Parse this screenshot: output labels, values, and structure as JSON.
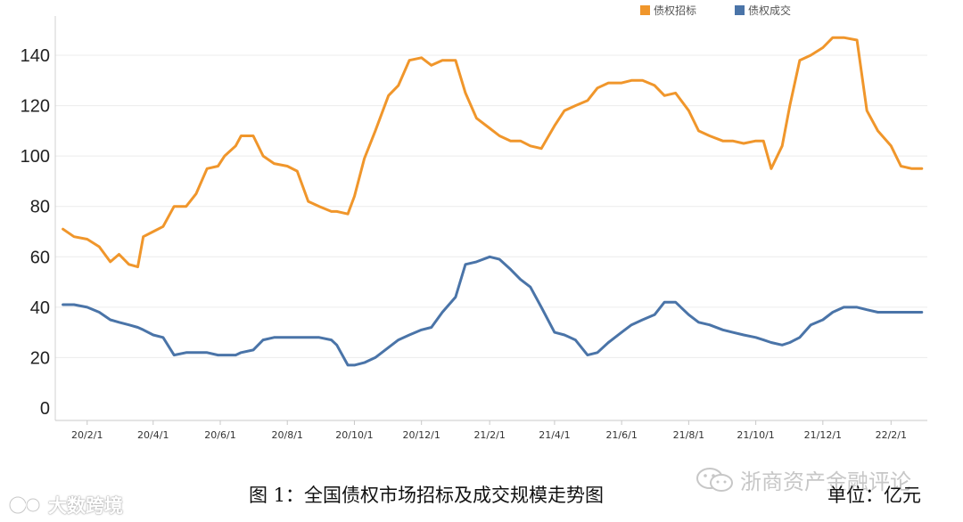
{
  "chart_data": {
    "type": "line",
    "title": "",
    "xlabel": "",
    "ylabel": "",
    "ylim": [
      0,
      150
    ],
    "yticks": [
      0,
      20,
      40,
      60,
      80,
      100,
      120,
      140
    ],
    "grid": true,
    "legend_position": "top-right",
    "x_ticks": [
      "20/2/1",
      "20/4/1",
      "20/6/1",
      "20/8/1",
      "20/10/1",
      "20/12/1",
      "21/2/1",
      "21/4/1",
      "21/6/1",
      "21/8/1",
      "21/10/1",
      "21/12/1",
      "22/2/1"
    ],
    "series": [
      {
        "name": "债权招标",
        "color": "#f0962b",
        "x": [
          "2020-01-10",
          "2020-01-20",
          "2020-02-01",
          "2020-02-12",
          "2020-02-22",
          "2020-03-01",
          "2020-03-10",
          "2020-03-18",
          "2020-03-23",
          "2020-04-01",
          "2020-04-10",
          "2020-04-20",
          "2020-05-01",
          "2020-05-10",
          "2020-05-20",
          "2020-05-30",
          "2020-06-05",
          "2020-06-15",
          "2020-06-20",
          "2020-07-01",
          "2020-07-10",
          "2020-07-20",
          "2020-08-01",
          "2020-08-10",
          "2020-08-20",
          "2020-08-30",
          "2020-09-10",
          "2020-09-15",
          "2020-09-25",
          "2020-10-01",
          "2020-10-10",
          "2020-10-20",
          "2020-11-01",
          "2020-11-10",
          "2020-11-20",
          "2020-12-01",
          "2020-12-10",
          "2020-12-20",
          "2021-01-01",
          "2021-01-10",
          "2021-01-20",
          "2021-02-01",
          "2021-02-10",
          "2021-02-20",
          "2021-03-01",
          "2021-03-10",
          "2021-03-20",
          "2021-04-01",
          "2021-04-10",
          "2021-04-20",
          "2021-05-01",
          "2021-05-10",
          "2021-05-20",
          "2021-06-01",
          "2021-06-10",
          "2021-06-20",
          "2021-07-01",
          "2021-07-10",
          "2021-07-20",
          "2021-08-01",
          "2021-08-10",
          "2021-08-20",
          "2021-09-01",
          "2021-09-10",
          "2021-09-20",
          "2021-10-01",
          "2021-10-08",
          "2021-10-15",
          "2021-10-25",
          "2021-11-01",
          "2021-11-10",
          "2021-11-20",
          "2021-12-01",
          "2021-12-10",
          "2021-12-20",
          "2022-01-01",
          "2022-01-10",
          "2022-01-20",
          "2022-02-01",
          "2022-02-10",
          "2022-02-20",
          "2022-03-01"
        ],
        "values": [
          71,
          68,
          67,
          64,
          58,
          61,
          57,
          56,
          68,
          70,
          72,
          80,
          80,
          85,
          95,
          96,
          100,
          104,
          108,
          108,
          100,
          97,
          96,
          94,
          82,
          80,
          78,
          78,
          77,
          84,
          99,
          110,
          124,
          128,
          138,
          139,
          136,
          138,
          138,
          125,
          115,
          111,
          108,
          106,
          106,
          104,
          103,
          112,
          118,
          120,
          122,
          127,
          129,
          129,
          130,
          130,
          128,
          124,
          125,
          118,
          110,
          108,
          106,
          106,
          105,
          106,
          106,
          95,
          104,
          120,
          138,
          140,
          143,
          147,
          147,
          146,
          118,
          110,
          104,
          96,
          95,
          95
        ]
      },
      {
        "name": "债权成交",
        "color": "#4a74a8",
        "x": [
          "2020-01-10",
          "2020-01-20",
          "2020-02-01",
          "2020-02-12",
          "2020-02-22",
          "2020-03-01",
          "2020-03-10",
          "2020-03-18",
          "2020-03-23",
          "2020-04-01",
          "2020-04-10",
          "2020-04-20",
          "2020-05-01",
          "2020-05-10",
          "2020-05-20",
          "2020-05-30",
          "2020-06-05",
          "2020-06-15",
          "2020-06-20",
          "2020-07-01",
          "2020-07-10",
          "2020-07-20",
          "2020-08-01",
          "2020-08-10",
          "2020-08-20",
          "2020-08-30",
          "2020-09-10",
          "2020-09-15",
          "2020-09-25",
          "2020-10-01",
          "2020-10-10",
          "2020-10-20",
          "2020-11-01",
          "2020-11-10",
          "2020-11-20",
          "2020-12-01",
          "2020-12-10",
          "2020-12-20",
          "2021-01-01",
          "2021-01-10",
          "2021-01-20",
          "2021-02-01",
          "2021-02-10",
          "2021-02-20",
          "2021-03-01",
          "2021-03-10",
          "2021-03-20",
          "2021-04-01",
          "2021-04-10",
          "2021-04-20",
          "2021-05-01",
          "2021-05-10",
          "2021-05-20",
          "2021-06-01",
          "2021-06-10",
          "2021-06-20",
          "2021-07-01",
          "2021-07-10",
          "2021-07-20",
          "2021-08-01",
          "2021-08-10",
          "2021-08-20",
          "2021-09-01",
          "2021-09-10",
          "2021-09-20",
          "2021-10-01",
          "2021-10-08",
          "2021-10-15",
          "2021-10-25",
          "2021-11-01",
          "2021-11-10",
          "2021-11-20",
          "2021-12-01",
          "2021-12-10",
          "2021-12-20",
          "2022-01-01",
          "2022-01-10",
          "2022-01-20",
          "2022-02-01",
          "2022-02-10",
          "2022-02-20",
          "2022-03-01"
        ],
        "values": [
          41,
          41,
          40,
          38,
          35,
          34,
          33,
          32,
          31,
          29,
          28,
          21,
          22,
          22,
          22,
          21,
          21,
          21,
          22,
          23,
          27,
          28,
          28,
          28,
          28,
          28,
          27,
          25,
          17,
          17,
          18,
          20,
          24,
          27,
          29,
          31,
          32,
          38,
          44,
          57,
          58,
          60,
          59,
          55,
          51,
          48,
          40,
          30,
          29,
          27,
          21,
          22,
          26,
          30,
          33,
          35,
          37,
          42,
          42,
          37,
          34,
          33,
          31,
          30,
          29,
          28,
          27,
          26,
          25,
          26,
          28,
          33,
          35,
          38,
          40,
          40,
          39,
          38,
          38,
          38,
          38,
          38
        ]
      }
    ]
  },
  "caption": "图 1：全国债权市场招标及成交规模走势图",
  "unit": "单位：亿元",
  "wechat_label": "浙商资产金融评论",
  "watermark": "大数跨境",
  "icons": {
    "wechat": "wechat-icon",
    "watermark": "watermark-logo-icon"
  }
}
